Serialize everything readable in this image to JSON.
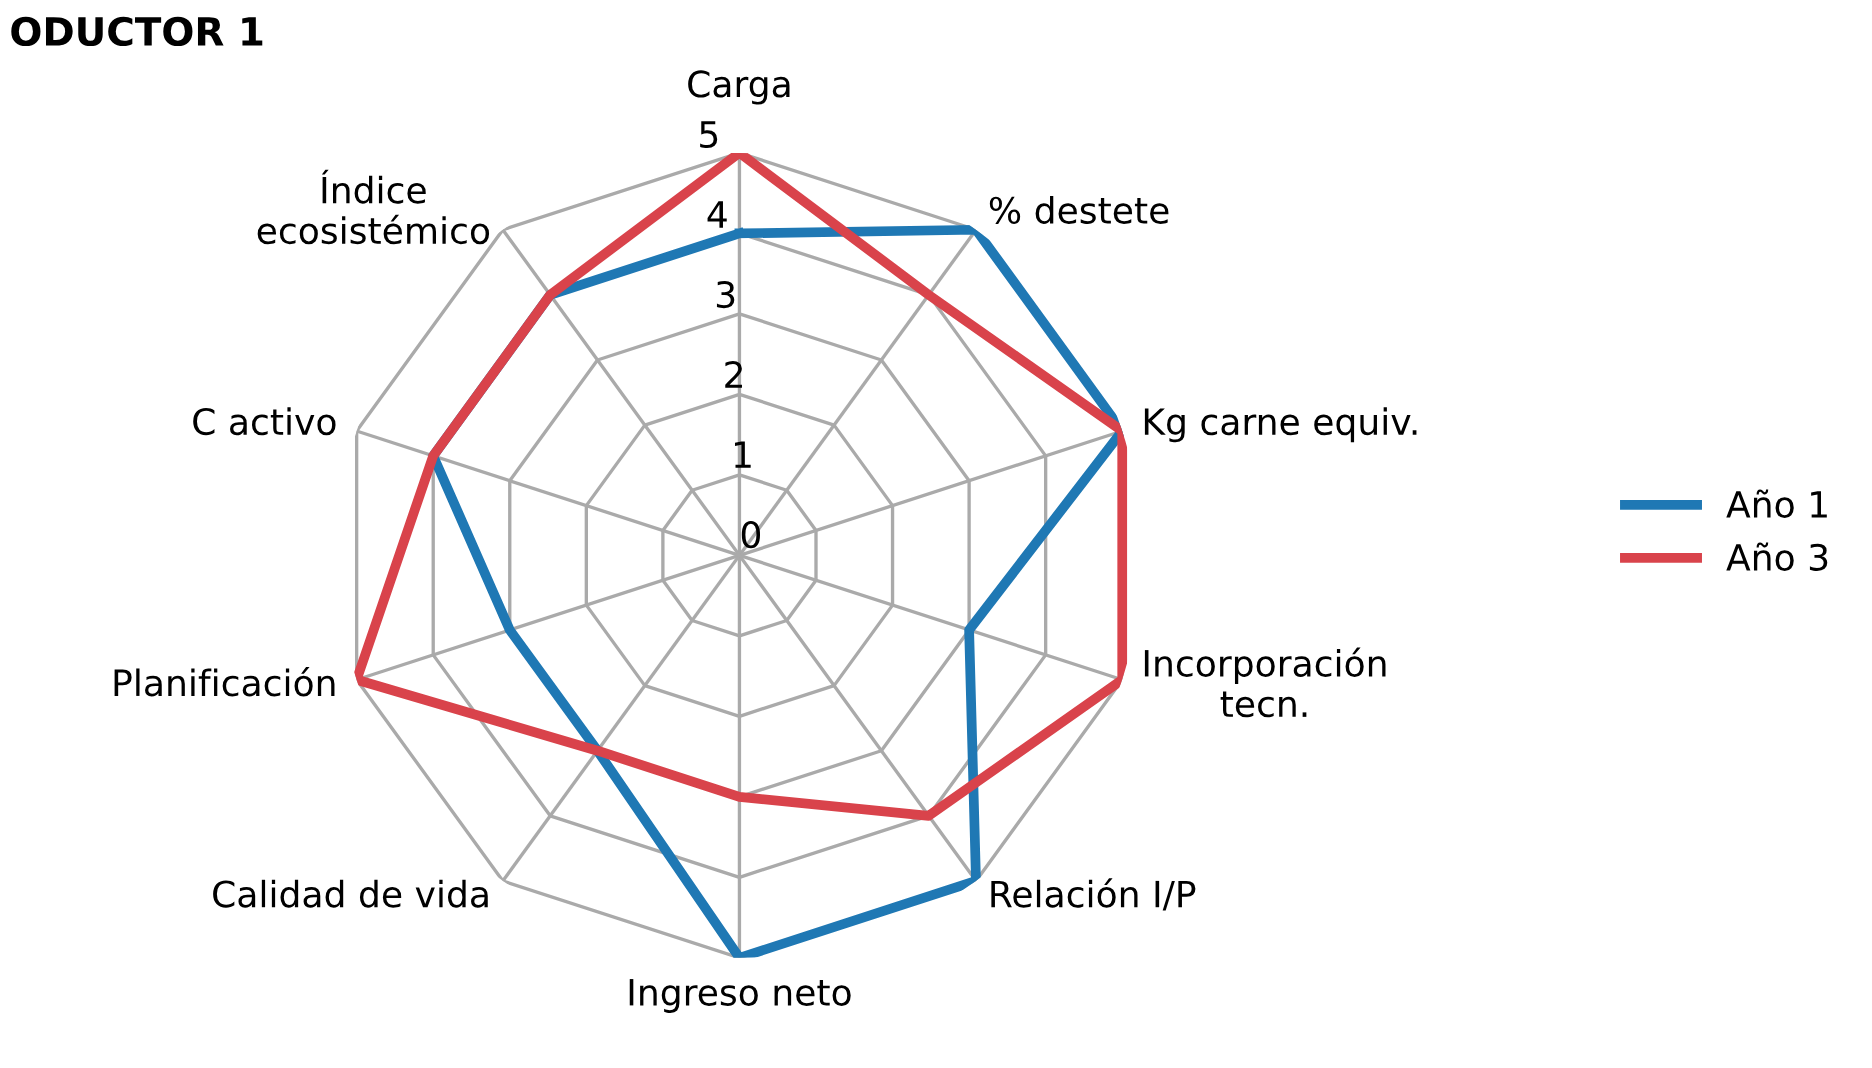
{
  "chart_data": {
    "type": "radar",
    "title": "ODUCTOR 1",
    "categories": [
      "Carga",
      "% destete",
      "Kg carne equiv.",
      "Incorporación tecn.",
      "Relación I/P",
      "Ingreso neto",
      "Calidad de vida",
      "Planificación",
      "C activo",
      "Índice ecosistémico"
    ],
    "series": [
      {
        "name": "Año 1",
        "color": "#1f78b4",
        "values": [
          4,
          5,
          5,
          3,
          5,
          5,
          3,
          3,
          4,
          4
        ]
      },
      {
        "name": "Año 3",
        "color": "#d9434b",
        "values": [
          5,
          4,
          5,
          5,
          4,
          3,
          3,
          5,
          4,
          4
        ]
      }
    ],
    "ylim": [
      0,
      5
    ],
    "yticks": [
      0,
      1,
      2,
      3,
      4,
      5
    ],
    "grid": true,
    "legend": "right",
    "marker": "none",
    "line_style": "solid"
  }
}
